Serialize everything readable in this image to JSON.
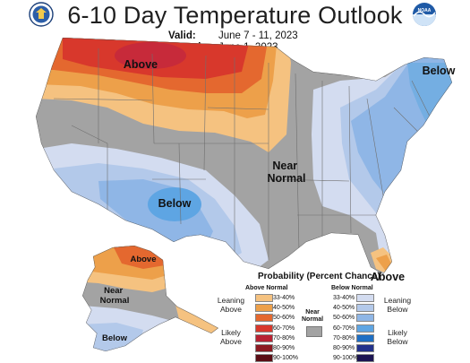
{
  "header": {
    "title": "6-10 Day Temperature Outlook",
    "valid_label": "Valid:",
    "valid_value": "June 7 - 11, 2023",
    "issued_label": "Issued:",
    "issued_value": "June 1, 2023"
  },
  "logos": {
    "left": "doc-seal",
    "right": "noaa-logo",
    "right_text": "NOAA"
  },
  "map": {
    "labels": {
      "north_plains": "Above",
      "northeast": "Below",
      "central": "Near\nNormal",
      "southwest": "Below",
      "florida": "Above",
      "alaska_north": "Above",
      "alaska_central": "Near\nNormal",
      "alaska_south": "Below"
    }
  },
  "legend": {
    "title": "Probability (Percent Chance)",
    "above_head": "Above Normal",
    "below_head": "Below Normal",
    "near_normal_label": "Near\nNormal",
    "leaning_above": "Leaning\nAbove",
    "likely_above": "Likely\nAbove",
    "leaning_below": "Leaning\nBelow",
    "likely_below": "Likely\nBelow",
    "ranges": [
      "33-40%",
      "40-50%",
      "50-60%",
      "60-70%",
      "70-80%",
      "80-90%",
      "90-100%"
    ],
    "above_colors": [
      "#f5c280",
      "#eda04a",
      "#e4682f",
      "#d8382c",
      "#b82233",
      "#8c1a22",
      "#5a0d14"
    ],
    "below_colors": [
      "#d3dcf0",
      "#b3c9ea",
      "#8fb6e6",
      "#5ea5e3",
      "#1e6fc4",
      "#22328c",
      "#1b1452"
    ],
    "near_normal_color": "#a3a3a3"
  }
}
